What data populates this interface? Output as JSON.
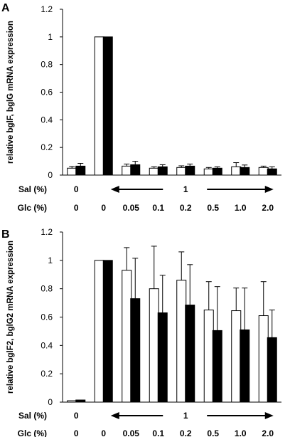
{
  "figure": {
    "row_labels": {
      "sal": "Sal (%)",
      "glc": "Glc (%)"
    },
    "sal_values": [
      "0",
      "1"
    ],
    "glc_values": [
      "0",
      "0",
      "0.05",
      "0.1",
      "0.2",
      "0.5",
      "1.0",
      "2.0"
    ],
    "colors": {
      "white_bar": "#ffffff",
      "black_bar": "#000000",
      "axis": "#000000"
    }
  },
  "chart_data": [
    {
      "type": "bar",
      "panel": "A",
      "ylabel": "relative bglF, bglG mRNA expression",
      "ylim": [
        0,
        1.2
      ],
      "yticks": [
        "0",
        "0.2",
        "0.4",
        "0.6",
        "0.8",
        "1",
        "1.2"
      ],
      "categories": [
        "0",
        "0",
        "0.05",
        "0.1",
        "0.2",
        "0.5",
        "1.0",
        "2.0"
      ],
      "series": [
        {
          "color": "#ffffff",
          "values": [
            0.05,
            1.0,
            0.065,
            0.05,
            0.055,
            0.045,
            0.06,
            0.055
          ],
          "errors": [
            0.012,
            0,
            0.015,
            0.01,
            0.012,
            0.01,
            0.03,
            0.01
          ]
        },
        {
          "color": "#000000",
          "values": [
            0.065,
            1.0,
            0.075,
            0.06,
            0.065,
            0.05,
            0.055,
            0.045
          ],
          "errors": [
            0.02,
            0,
            0.025,
            0.015,
            0.015,
            0.01,
            0.018,
            0.015
          ]
        }
      ]
    },
    {
      "type": "bar",
      "panel": "B",
      "ylabel": "relative bglF2, bglG2 mRNA expression",
      "ylim": [
        0,
        1.2
      ],
      "yticks": [
        "0",
        "0.2",
        "0.4",
        "0.6",
        "0.8",
        "1",
        "1.2"
      ],
      "categories": [
        "0",
        "0",
        "0.05",
        "0.1",
        "0.2",
        "0.5",
        "1.0",
        "2.0"
      ],
      "series": [
        {
          "color": "#ffffff",
          "values": [
            0.01,
            1.0,
            0.93,
            0.8,
            0.86,
            0.65,
            0.645,
            0.61
          ],
          "errors": [
            0,
            0,
            0.16,
            0.3,
            0.2,
            0.2,
            0.16,
            0.24
          ]
        },
        {
          "color": "#000000",
          "values": [
            0.015,
            1.0,
            0.73,
            0.63,
            0.685,
            0.505,
            0.51,
            0.455
          ],
          "errors": [
            0,
            0,
            0.285,
            0.265,
            0.285,
            0.31,
            0.295,
            0.195
          ]
        }
      ]
    }
  ]
}
